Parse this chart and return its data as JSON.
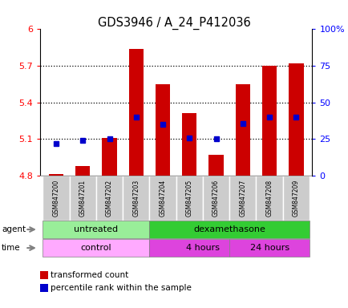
{
  "title": "GDS3946 / A_24_P412036",
  "samples": [
    "GSM847200",
    "GSM847201",
    "GSM847202",
    "GSM847203",
    "GSM847204",
    "GSM847205",
    "GSM847206",
    "GSM847207",
    "GSM847208",
    "GSM847209"
  ],
  "bar_values": [
    4.81,
    4.88,
    5.11,
    5.84,
    5.55,
    5.31,
    4.97,
    5.55,
    5.7,
    5.72
  ],
  "bar_base": 4.8,
  "percentile_values": [
    5.06,
    5.09,
    5.1,
    5.28,
    5.22,
    5.11,
    5.1,
    5.23,
    5.28,
    5.28
  ],
  "ylim_left": [
    4.8,
    6.0
  ],
  "ylim_right": [
    0,
    100
  ],
  "yticks_left": [
    4.8,
    5.1,
    5.4,
    5.7,
    6.0
  ],
  "yticks_right": [
    0,
    25,
    50,
    75,
    100
  ],
  "ytick_labels_left": [
    "4.8",
    "5.1",
    "5.4",
    "5.7",
    "6"
  ],
  "ytick_labels_right": [
    "0",
    "25",
    "50",
    "75",
    "100%"
  ],
  "bar_color": "#cc0000",
  "percentile_color": "#0000cc",
  "agent_untreated_color": "#99ee99",
  "agent_dex_color": "#33cc33",
  "time_control_color": "#ffaaff",
  "time_4h_color": "#dd44dd",
  "time_24h_color": "#dd44dd",
  "sample_bg_color": "#cccccc",
  "bar_width": 0.55,
  "percentile_marker_size": 5
}
